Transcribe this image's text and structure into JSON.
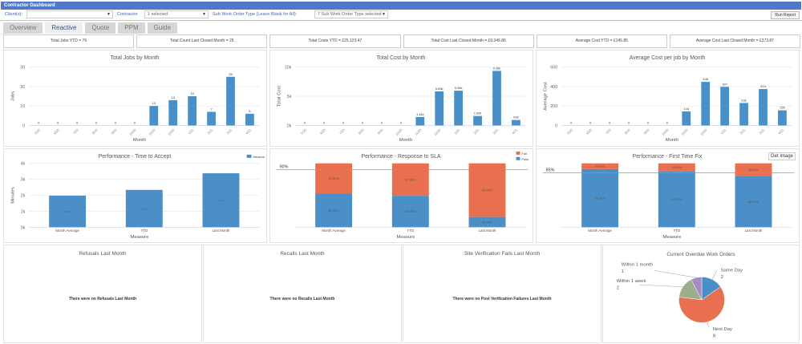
{
  "app": {
    "title": "Contractor Dashboard"
  },
  "filters": {
    "client_label": "Client(s):",
    "client_value": "",
    "contractor_label": "Contractor",
    "contractor_value": "1 selected",
    "subtype_label": "Sub Work Order Type (Leave Blank for All):",
    "subtype_value": "7 Sub Work Order Type selected",
    "run_label": "Run Report"
  },
  "tabs": [
    {
      "label": "Overview",
      "active": false
    },
    {
      "label": "Reactive",
      "active": true
    },
    {
      "label": "Quote",
      "active": false
    },
    {
      "label": "PPM",
      "active": false
    },
    {
      "label": "Guide",
      "active": false
    }
  ],
  "kpis": [
    "Total Jobs YTD = 76",
    "Total Count Last Closed Month = 25",
    "Total Costs YTD = £25,123.47",
    "Total Cost Last Closed Month = £9,346.86",
    "Average Cost YTD = £145.85",
    "Average Cost Last Closed Month = £373.87"
  ],
  "colors": {
    "bar": "#4a8fc7",
    "fail": "#e86f4f",
    "pass": "#4a8fc7",
    "target_line": "#e07a7a",
    "header": "#4f79c8"
  },
  "get_image_label": "Get Image",
  "empty_panels": [
    {
      "title": "Refusals Last Month",
      "message": "There were no Refusals Last Month"
    },
    {
      "title": "Recalls Last Month",
      "message": "There were no Recalls Last Month"
    },
    {
      "title": "Site Verification Fails Last Month",
      "message": "There were no Post Verification Failures Last Month"
    }
  ],
  "chart_data": [
    {
      "type": "bar",
      "title": "Total Jobs by Month",
      "xlabel": "Month",
      "ylabel": "Jobs",
      "categories": [
        "5/20",
        "6/20",
        "7/20",
        "8/20",
        "9/20",
        "10/20",
        "11/20",
        "12/20",
        "1/21",
        "2/21",
        "3/21",
        "4/21"
      ],
      "values": [
        0,
        0,
        0,
        0,
        0,
        0,
        10,
        13,
        15,
        7,
        25,
        6
      ],
      "labels": [
        "0",
        "0",
        "0",
        "0",
        "0",
        "0",
        "10",
        "13",
        "15",
        "7",
        "25",
        "6"
      ],
      "ylim": [
        0,
        30
      ],
      "ticks": [
        "0",
        "10",
        "20",
        "30"
      ],
      "grid": true
    },
    {
      "type": "bar",
      "title": "Total Cost by Month",
      "xlabel": "Month",
      "ylabel": "Total Cost",
      "categories": [
        "5/20",
        "6/20",
        "7/20",
        "8/20",
        "9/20",
        "10/20",
        "11/20",
        "12/20",
        "1/21",
        "2/21",
        "3/21",
        "4/21"
      ],
      "values": [
        0,
        0,
        0,
        0,
        0,
        0,
        1440,
        5830,
        5950,
        1620,
        9350,
        935
      ],
      "labels": [
        "0",
        "0",
        "0",
        "0",
        "0",
        "0",
        "1.44k",
        "5.83k",
        "5.95k",
        "1.62k",
        "9.35k",
        "935"
      ],
      "ylim": [
        0,
        10000
      ],
      "ticks": [
        "0k",
        "5k",
        "10k"
      ],
      "grid": true
    },
    {
      "type": "bar",
      "title": "Average Cost per job by Month",
      "xlabel": "Month",
      "ylabel": "Average Cost",
      "categories": [
        "5/20",
        "6/20",
        "7/20",
        "8/20",
        "9/20",
        "10/20",
        "11/20",
        "12/20",
        "1/21",
        "2/21",
        "3/21",
        "4/21"
      ],
      "values": [
        0,
        0,
        0,
        0,
        0,
        0,
        144,
        448,
        397,
        231,
        374,
        155
      ],
      "labels": [
        "0",
        "0",
        "0",
        "0",
        "0",
        "0",
        "144",
        "448",
        "397",
        "231",
        "374",
        "155"
      ],
      "ylim": [
        0,
        600
      ],
      "ticks": [
        "0",
        "200",
        "400",
        "600"
      ],
      "grid": true
    },
    {
      "type": "bar",
      "title": "Performance - Time to Accept",
      "xlabel": "Measure",
      "ylabel": "Minutes",
      "categories": [
        "Month Average",
        "YTD",
        "Last Month"
      ],
      "values": [
        1974,
        2336,
        3377
      ],
      "labels": [
        "1974",
        "2336",
        "3377"
      ],
      "ylim": [
        0,
        4000
      ],
      "ticks": [
        "0k",
        "1k",
        "2k",
        "3k",
        "4k"
      ],
      "grid": true,
      "series": [
        {
          "name": "Measure"
        }
      ],
      "legend": "top-right"
    },
    {
      "type": "bar",
      "stacked": true,
      "title": "Performance - Response to SLA",
      "xlabel": "Measure",
      "categories": [
        "Month Average",
        "YTD",
        "Last Month"
      ],
      "series": [
        {
          "name": "Pass",
          "values": [
            52.5,
            49.2,
            16.0
          ]
        },
        {
          "name": "Fail",
          "values": [
            47.5,
            50.8,
            84.0
          ]
        }
      ],
      "target": 90,
      "target_label": "90%",
      "ylim": [
        0,
        100
      ],
      "legend": "top-right"
    },
    {
      "type": "bar",
      "stacked": true,
      "title": "Performance - First Time Fix",
      "xlabel": "Measure",
      "categories": [
        "Month Average",
        "YTD",
        "Last Month"
      ],
      "series": [
        {
          "name": "Pass",
          "values": [
            91.0,
            87.5,
            80.0
          ]
        },
        {
          "name": "Fail",
          "values": [
            9.0,
            12.5,
            20.0
          ]
        }
      ],
      "target": 85,
      "target_label": "85%",
      "ylim": [
        0,
        100
      ]
    },
    {
      "type": "pie",
      "title": "Current Overdue Work Orders",
      "slices": [
        {
          "label": "Same Day",
          "value": 2,
          "color": "#4a8fc7"
        },
        {
          "label": "Next Day",
          "value": 8,
          "color": "#e86f4f"
        },
        {
          "label": "Within 1 week",
          "value": 2,
          "color": "#9fae8a"
        },
        {
          "label": "Within 1 month",
          "value": 1,
          "color": "#a38cc6"
        }
      ]
    }
  ]
}
